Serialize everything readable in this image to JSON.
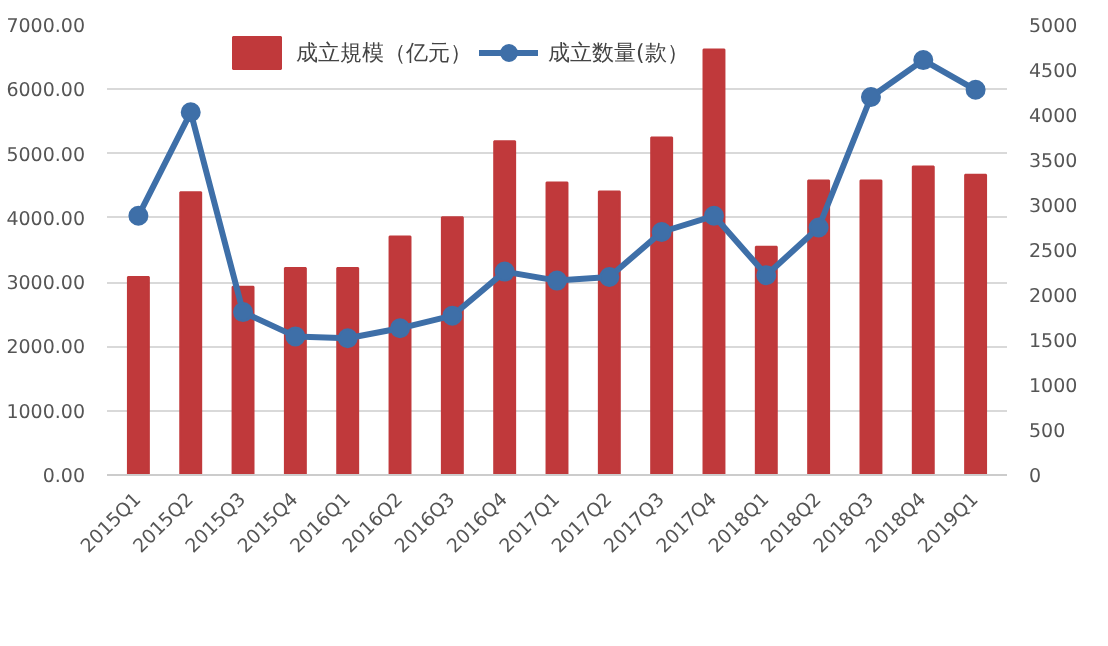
{
  "chart_data": {
    "type": "bar",
    "categories": [
      "2015Q1",
      "2015Q2",
      "2015Q3",
      "2015Q4",
      "2016Q1",
      "2016Q2",
      "2016Q3",
      "2016Q4",
      "2017Q1",
      "2017Q2",
      "2017Q3",
      "2017Q4",
      "2018Q1",
      "2018Q2",
      "2018Q3",
      "2018Q4",
      "2019Q1"
    ],
    "series": [
      {
        "name": "成立規模（亿元）",
        "color": "#c0393b",
        "values": [
          3080,
          4400,
          2930,
          3220,
          3220,
          3710,
          4010,
          5190,
          4550,
          4410,
          5250,
          6620,
          3550,
          4580,
          4580,
          4800,
          4670
        ]
      },
      {
        "name": "成立数量(款）",
        "color": "#3e6fa8",
        "type": "line",
        "axis": "y2",
        "values": [
          2880,
          4030,
          1810,
          1540,
          1520,
          1630,
          1770,
          2260,
          2160,
          2200,
          2700,
          2880,
          2220,
          2750,
          4200,
          4610,
          4280
        ]
      }
    ],
    "ylim": [
      0,
      7000
    ],
    "yticks": [
      {
        "value": 0,
        "label": "0.00"
      },
      {
        "value": 1000,
        "label": "1000.00"
      },
      {
        "value": 2000,
        "label": "2000.00"
      },
      {
        "value": 3000,
        "label": "3000.00"
      },
      {
        "value": 4000,
        "label": "4000.00"
      },
      {
        "value": 5000,
        "label": "5000.00"
      },
      {
        "value": 6000,
        "label": "6000.00"
      },
      {
        "value": 7000,
        "label": "7000.00"
      }
    ],
    "y2lim": [
      0,
      5000
    ],
    "y2ticks": [
      0,
      500,
      1000,
      1500,
      2000,
      2500,
      3000,
      3500,
      4000,
      4500,
      5000
    ],
    "grid": "y",
    "legend": "top",
    "marker": "circle",
    "line_style": "solid"
  }
}
